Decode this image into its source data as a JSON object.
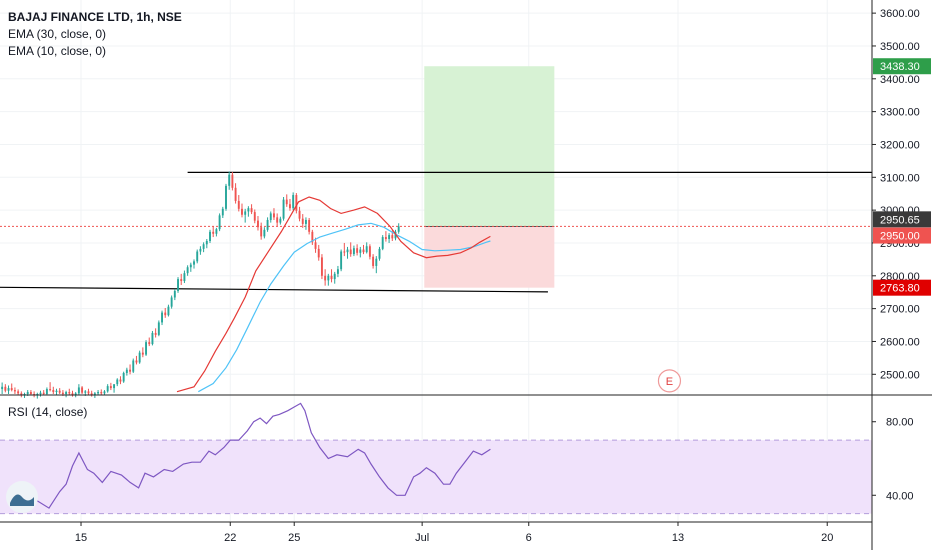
{
  "legend": {
    "title": "BAJAJ FINANCE LTD, 1h, NSE",
    "ema30": "EMA (30, close, 0)",
    "ema10": "EMA (10, close, 0)",
    "rsi": "RSI (14, close)"
  },
  "colors": {
    "up": "#26a69a",
    "down": "#ef5350",
    "ema10": "#e53935",
    "ema30": "#4fc3f7",
    "rsi": "#7e57c2",
    "target_zone": "#d7f2d4",
    "stop_zone": "#fbdadb",
    "rsi_band": "#f0e2fb",
    "hline": "#000000",
    "tag_target": "#2e9e4a",
    "tag_last": "#3a3a3a",
    "tag_entry": "#ef5350",
    "tag_stop": "#e00000"
  },
  "chart_data": {
    "type": "candlestick",
    "title": "BAJAJ FINANCE LTD, 1h, NSE",
    "price_axis": {
      "ticks": [
        "3600.00",
        "3500.00",
        "3400.00",
        "3300.00",
        "3200.00",
        "3100.00",
        "3000.00",
        "2900.00",
        "2800.00",
        "2700.00",
        "2600.00",
        "2500.00"
      ],
      "range": [
        2440,
        3640
      ]
    },
    "rsi_axis": {
      "ticks": [
        "80.00",
        "40.00"
      ],
      "range": [
        26,
        94
      ],
      "band": [
        70,
        30
      ]
    },
    "x_ticks": [
      "15",
      "22",
      "25",
      "Jul",
      "6",
      "13",
      "20"
    ],
    "x_day_index": [
      0,
      7,
      10,
      16,
      21,
      28,
      35
    ],
    "x_range_days": [
      -3.8,
      37.1
    ],
    "price_labels": {
      "target": "3438.30",
      "last": "2950.65",
      "entry": "2950.00",
      "stop": "2763.80"
    },
    "levels": {
      "resistance": 3115,
      "support": 2755,
      "entry": 2950,
      "target": 3438.3,
      "stop": 2763.8
    },
    "position_window_days": [
      16.1,
      22.2
    ],
    "event_marker": "E",
    "series": [
      {
        "name": "BAJAJ FINANCE LTD",
        "candles": [
          [
            2455,
            2475,
            2440,
            2462
          ],
          [
            2462,
            2470,
            2445,
            2450
          ],
          [
            2450,
            2466,
            2440,
            2458
          ],
          [
            2458,
            2472,
            2448,
            2452
          ],
          [
            2452,
            2460,
            2440,
            2448
          ],
          [
            2448,
            2454,
            2438,
            2442
          ],
          [
            2442,
            2448,
            2430,
            2436
          ],
          [
            2436,
            2444,
            2428,
            2440
          ],
          [
            2440,
            2452,
            2434,
            2446
          ],
          [
            2446,
            2452,
            2436,
            2440
          ],
          [
            2440,
            2448,
            2430,
            2436
          ],
          [
            2436,
            2444,
            2426,
            2440
          ],
          [
            2440,
            2450,
            2432,
            2444
          ],
          [
            2444,
            2452,
            2436,
            2440
          ],
          [
            2440,
            2460,
            2436,
            2455
          ],
          [
            2455,
            2476,
            2448,
            2452
          ],
          [
            2452,
            2462,
            2440,
            2446
          ],
          [
            2446,
            2456,
            2436,
            2450
          ],
          [
            2450,
            2458,
            2440,
            2444
          ],
          [
            2444,
            2452,
            2434,
            2440
          ],
          [
            2440,
            2450,
            2430,
            2446
          ],
          [
            2446,
            2456,
            2438,
            2442
          ],
          [
            2442,
            2450,
            2432,
            2438
          ],
          [
            2438,
            2446,
            2430,
            2442
          ],
          [
            2442,
            2470,
            2438,
            2460
          ],
          [
            2460,
            2464,
            2440,
            2444
          ],
          [
            2444,
            2452,
            2434,
            2448
          ],
          [
            2448,
            2456,
            2438,
            2442
          ],
          [
            2442,
            2450,
            2432,
            2438
          ],
          [
            2438,
            2446,
            2428,
            2442
          ],
          [
            2442,
            2452,
            2436,
            2446
          ],
          [
            2446,
            2454,
            2438,
            2442
          ],
          [
            2442,
            2452,
            2436,
            2448
          ],
          [
            2448,
            2470,
            2444,
            2464
          ],
          [
            2464,
            2474,
            2452,
            2458
          ],
          [
            2458,
            2466,
            2444,
            2470
          ],
          [
            2470,
            2488,
            2464,
            2484
          ],
          [
            2484,
            2494,
            2470,
            2478
          ],
          [
            2478,
            2508,
            2474,
            2504
          ],
          [
            2504,
            2520,
            2496,
            2514
          ],
          [
            2514,
            2530,
            2500,
            2508
          ],
          [
            2508,
            2548,
            2504,
            2542
          ],
          [
            2542,
            2556,
            2530,
            2536
          ],
          [
            2536,
            2572,
            2532,
            2566
          ],
          [
            2566,
            2582,
            2552,
            2560
          ],
          [
            2560,
            2604,
            2556,
            2598
          ],
          [
            2598,
            2612,
            2586,
            2592
          ],
          [
            2592,
            2632,
            2588,
            2626
          ],
          [
            2626,
            2640,
            2612,
            2620
          ],
          [
            2620,
            2664,
            2616,
            2658
          ],
          [
            2658,
            2694,
            2650,
            2688
          ],
          [
            2688,
            2702,
            2672,
            2680
          ],
          [
            2680,
            2712,
            2676,
            2706
          ],
          [
            2706,
            2740,
            2700,
            2734
          ],
          [
            2734,
            2760,
            2726,
            2754
          ],
          [
            2754,
            2796,
            2748,
            2790
          ],
          [
            2790,
            2806,
            2772,
            2784
          ],
          [
            2784,
            2816,
            2778,
            2808
          ],
          [
            2808,
            2832,
            2800,
            2826
          ],
          [
            2826,
            2840,
            2812,
            2834
          ],
          [
            2834,
            2850,
            2822,
            2844
          ],
          [
            2844,
            2880,
            2838,
            2874
          ],
          [
            2874,
            2890,
            2864,
            2882
          ],
          [
            2882,
            2902,
            2872,
            2896
          ],
          [
            2896,
            2912,
            2884,
            2906
          ],
          [
            2906,
            2940,
            2900,
            2934
          ],
          [
            2934,
            2950,
            2918,
            2928
          ],
          [
            2928,
            2946,
            2920,
            2942
          ],
          [
            2942,
            2990,
            2936,
            2984
          ],
          [
            2984,
            3010,
            2976,
            3004
          ],
          [
            3004,
            3080,
            2998,
            3074
          ],
          [
            3074,
            3118,
            3062,
            3108
          ],
          [
            3108,
            3116,
            3060,
            3068
          ],
          [
            3068,
            3082,
            3020,
            3028
          ],
          [
            3028,
            3046,
            2996,
            3004
          ],
          [
            3004,
            3020,
            2978,
            2986
          ],
          [
            2986,
            3004,
            2962,
            2996
          ],
          [
            2996,
            3012,
            2980,
            3006
          ],
          [
            3006,
            3018,
            2988,
            2994
          ],
          [
            2994,
            3002,
            2960,
            2968
          ],
          [
            2968,
            2982,
            2938,
            2948
          ],
          [
            2948,
            2962,
            2910,
            2920
          ],
          [
            2920,
            2948,
            2914,
            2940
          ],
          [
            2940,
            2978,
            2934,
            2970
          ],
          [
            2970,
            2996,
            2962,
            2990
          ],
          [
            2990,
            3006,
            2970,
            2978
          ],
          [
            2978,
            2990,
            2950,
            2962
          ],
          [
            2962,
            2980,
            2956,
            2974
          ],
          [
            2974,
            3040,
            2968,
            3032
          ],
          [
            3032,
            3048,
            3010,
            3018
          ],
          [
            3018,
            3034,
            2998,
            3006
          ],
          [
            3006,
            3054,
            3000,
            3046
          ],
          [
            3046,
            3052,
            2990,
            2998
          ],
          [
            2998,
            3010,
            2966,
            2974
          ],
          [
            2974,
            2988,
            2946,
            2958
          ],
          [
            2958,
            2978,
            2940,
            2970
          ],
          [
            2970,
            2976,
            2926,
            2934
          ],
          [
            2934,
            2940,
            2894,
            2902
          ],
          [
            2902,
            2916,
            2870,
            2882
          ],
          [
            2882,
            2894,
            2846,
            2856
          ],
          [
            2856,
            2866,
            2790,
            2800
          ],
          [
            2800,
            2820,
            2770,
            2786
          ],
          [
            2786,
            2806,
            2770,
            2800
          ],
          [
            2800,
            2820,
            2780,
            2790
          ],
          [
            2790,
            2812,
            2776,
            2806
          ],
          [
            2806,
            2830,
            2796,
            2820
          ],
          [
            2820,
            2880,
            2814,
            2874
          ],
          [
            2874,
            2900,
            2860,
            2872
          ],
          [
            2872,
            2888,
            2852,
            2880
          ],
          [
            2880,
            2902,
            2858,
            2866
          ],
          [
            2866,
            2892,
            2860,
            2884
          ],
          [
            2884,
            2896,
            2862,
            2870
          ],
          [
            2870,
            2888,
            2856,
            2880
          ],
          [
            2880,
            2894,
            2866,
            2872
          ],
          [
            2872,
            2902,
            2868,
            2890
          ],
          [
            2890,
            2896,
            2850,
            2858
          ],
          [
            2858,
            2866,
            2822,
            2830
          ],
          [
            2830,
            2860,
            2808,
            2852
          ],
          [
            2852,
            2888,
            2846,
            2882
          ],
          [
            2882,
            2924,
            2878,
            2918
          ],
          [
            2918,
            2936,
            2904,
            2912
          ],
          [
            2912,
            2930,
            2900,
            2924
          ],
          [
            2924,
            2938,
            2906,
            2914
          ],
          [
            2914,
            2940,
            2908,
            2934
          ],
          [
            2934,
            2960,
            2928,
            2950.65
          ]
        ],
        "candle_day_start": -3.7,
        "candle_day_step": 0.15
      }
    ],
    "rsi_series": {
      "name": "RSI (14, close)",
      "points": [
        [
          -3.2,
          44
        ],
        [
          -2.7,
          40
        ],
        [
          -2.2,
          38
        ],
        [
          -1.5,
          33
        ],
        [
          -1.0,
          42
        ],
        [
          -0.7,
          46
        ],
        [
          -0.4,
          56
        ],
        [
          -0.1,
          63
        ],
        [
          0.3,
          54
        ],
        [
          0.6,
          52
        ],
        [
          1.0,
          47
        ],
        [
          1.4,
          53
        ],
        [
          1.9,
          51
        ],
        [
          2.3,
          47
        ],
        [
          2.7,
          44
        ],
        [
          3.0,
          52
        ],
        [
          3.4,
          50
        ],
        [
          3.9,
          54
        ],
        [
          4.3,
          53
        ],
        [
          4.8,
          57
        ],
        [
          5.2,
          58
        ],
        [
          5.6,
          58
        ],
        [
          6.0,
          64
        ],
        [
          6.3,
          62
        ],
        [
          6.7,
          66
        ],
        [
          7.0,
          70
        ],
        [
          7.4,
          70
        ],
        [
          7.8,
          75
        ],
        [
          8.1,
          80
        ],
        [
          8.4,
          82
        ],
        [
          8.7,
          79
        ],
        [
          9.0,
          83
        ],
        [
          9.3,
          84
        ],
        [
          9.7,
          86
        ],
        [
          10.0,
          88
        ],
        [
          10.3,
          90
        ],
        [
          10.5,
          86
        ],
        [
          10.8,
          74
        ],
        [
          11.2,
          66
        ],
        [
          11.6,
          60
        ],
        [
          12.0,
          62
        ],
        [
          12.5,
          61
        ],
        [
          13.0,
          65
        ],
        [
          13.3,
          63
        ],
        [
          13.6,
          57
        ],
        [
          14.0,
          50
        ],
        [
          14.4,
          44
        ],
        [
          14.8,
          40
        ],
        [
          15.2,
          40
        ],
        [
          15.6,
          50
        ],
        [
          15.9,
          52
        ],
        [
          16.2,
          55
        ],
        [
          16.6,
          52
        ],
        [
          17.0,
          46
        ],
        [
          17.3,
          46
        ],
        [
          17.6,
          52
        ],
        [
          18.0,
          58
        ],
        [
          18.4,
          64
        ],
        [
          18.8,
          62
        ],
        [
          19.2,
          65
        ]
      ]
    },
    "ema10_series": {
      "name": "EMA (10, close, 0)",
      "points": [
        [
          4.5,
          2447
        ],
        [
          5.3,
          2462
        ],
        [
          5.8,
          2510
        ],
        [
          6.3,
          2570
        ],
        [
          6.8,
          2625
        ],
        [
          7.2,
          2672
        ],
        [
          7.7,
          2735
        ],
        [
          8.2,
          2815
        ],
        [
          8.8,
          2875
        ],
        [
          9.4,
          2935
        ],
        [
          10.2,
          3025
        ],
        [
          10.7,
          3040
        ],
        [
          11.2,
          3030
        ],
        [
          11.7,
          3005
        ],
        [
          12.2,
          2990
        ],
        [
          12.8,
          3000
        ],
        [
          13.3,
          3010
        ],
        [
          13.9,
          2990
        ],
        [
          14.5,
          2950
        ],
        [
          15.0,
          2905
        ],
        [
          15.6,
          2870
        ],
        [
          16.2,
          2855
        ],
        [
          16.7,
          2860
        ],
        [
          17.2,
          2862
        ],
        [
          17.8,
          2870
        ],
        [
          18.3,
          2885
        ],
        [
          18.7,
          2902
        ],
        [
          19.2,
          2920
        ]
      ]
    },
    "ema30_series": {
      "name": "EMA (30, close, 0)",
      "points": [
        [
          5.5,
          2447
        ],
        [
          6.2,
          2472
        ],
        [
          6.8,
          2520
        ],
        [
          7.3,
          2575
        ],
        [
          7.8,
          2640
        ],
        [
          8.4,
          2720
        ],
        [
          8.9,
          2775
        ],
        [
          9.5,
          2830
        ],
        [
          10.0,
          2872
        ],
        [
          10.6,
          2898
        ],
        [
          11.2,
          2918
        ],
        [
          11.8,
          2930
        ],
        [
          12.4,
          2942
        ],
        [
          13.0,
          2955
        ],
        [
          13.6,
          2960
        ],
        [
          14.2,
          2948
        ],
        [
          14.8,
          2925
        ],
        [
          15.4,
          2905
        ],
        [
          16.0,
          2880
        ],
        [
          16.6,
          2876
        ],
        [
          17.2,
          2878
        ],
        [
          17.8,
          2880
        ],
        [
          18.4,
          2888
        ],
        [
          19.0,
          2902
        ],
        [
          19.2,
          2906
        ]
      ]
    }
  }
}
